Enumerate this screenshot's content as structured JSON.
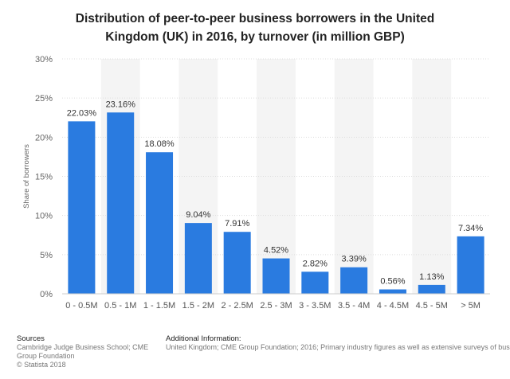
{
  "chart_data": {
    "type": "bar",
    "title_lines": [
      "Distribution of peer-to-peer business borrowers in the United",
      "Kingdom (UK) in 2016, by turnover (in million GBP)"
    ],
    "xlabel": "",
    "ylabel": "Share of borrowers",
    "ylim": [
      0,
      30
    ],
    "y_ticks": [
      0,
      5,
      10,
      15,
      20,
      25,
      30
    ],
    "y_tick_labels": [
      "0%",
      "5%",
      "10%",
      "15%",
      "20%",
      "25%",
      "30%"
    ],
    "categories": [
      "0 - 0.5M",
      "0.5 - 1M",
      "1 - 1.5M",
      "1.5 - 2M",
      "2 - 2.5M",
      "2.5 - 3M",
      "3 - 3.5M",
      "3.5 - 4M",
      "4 - 4.5M",
      "4.5 - 5M",
      "> 5M"
    ],
    "values": [
      22.03,
      23.16,
      18.08,
      9.04,
      7.91,
      4.52,
      2.82,
      3.39,
      0.56,
      1.13,
      7.34
    ],
    "value_labels": [
      "22.03%",
      "23.16%",
      "18.08%",
      "9.04%",
      "7.91%",
      "4.52%",
      "2.82%",
      "3.39%",
      "0.56%",
      "1.13%",
      "7.34%"
    ],
    "bar_color": "#2a7be0",
    "grid": true,
    "legend": "none"
  },
  "footer": {
    "sources_heading": "Sources",
    "sources_text": "Cambridge Judge Business School; CME Group Foundation",
    "additional_heading": "Additional Information:",
    "additional_text": "United Kingdom; CME Group Foundation; 2016; Primary industry figures as well as extensive surveys of business",
    "copyright": "© Statista 2018"
  }
}
